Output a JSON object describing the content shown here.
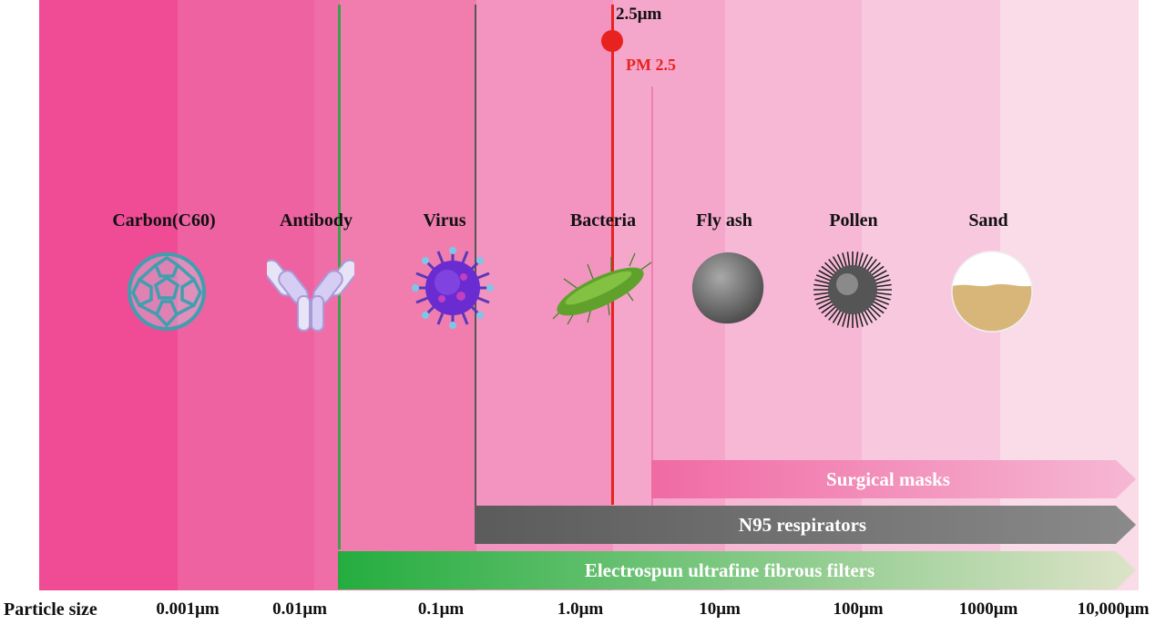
{
  "particles": [
    {
      "name": "Carbon(C60)",
      "icon": "fullerene-icon"
    },
    {
      "name": "Antibody",
      "icon": "antibody-icon"
    },
    {
      "name": "Virus",
      "icon": "virus-icon"
    },
    {
      "name": "Bacteria",
      "icon": "bacteria-icon"
    },
    {
      "name": "Fly ash",
      "icon": "fly-ash-icon"
    },
    {
      "name": "Pollen",
      "icon": "pollen-icon"
    },
    {
      "name": "Sand",
      "icon": "sand-icon"
    }
  ],
  "pm25": {
    "size_label": "2.5μm",
    "label": "PM 2.5",
    "color": "#e8231f"
  },
  "filters": [
    {
      "label": "Surgical masks",
      "color": "#f074a8"
    },
    {
      "label": "N95 respirators",
      "color": "#6e6e6e"
    },
    {
      "label": "Electrospun ultrafine fibrous filters",
      "color": "#2fb24c"
    }
  ],
  "axis": {
    "title": "Particle size",
    "ticks": [
      "0.001μm",
      "0.01μm",
      "0.1μm",
      "1.0μm",
      "10μm",
      "100μm",
      "1000μm",
      "10,000μm"
    ]
  }
}
